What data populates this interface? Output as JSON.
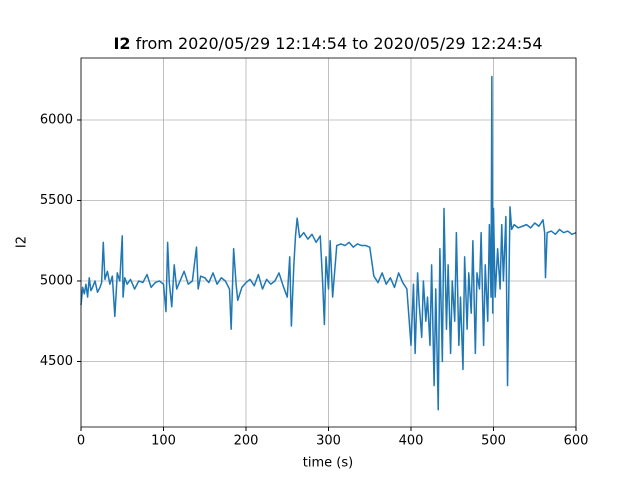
{
  "chart_data": {
    "type": "line",
    "title_parts": [
      "I2",
      "from 2020/05/29 12:14:54 to 2020/05/29 12:24:54"
    ],
    "xlabel": "time (s)",
    "ylabel": "I2",
    "x": [
      0,
      2,
      4,
      6,
      8,
      10,
      12,
      14,
      17,
      20,
      23,
      25,
      27,
      29,
      32,
      35,
      38,
      41,
      44,
      47,
      50,
      51,
      53,
      56,
      60,
      65,
      70,
      75,
      80,
      85,
      90,
      95,
      100,
      103,
      105,
      107,
      110,
      113,
      116,
      120,
      125,
      130,
      135,
      140,
      142,
      145,
      150,
      155,
      160,
      165,
      170,
      175,
      180,
      182,
      185,
      188,
      190,
      195,
      200,
      205,
      210,
      215,
      220,
      225,
      230,
      235,
      240,
      245,
      250,
      253,
      255,
      258,
      260,
      262,
      265,
      270,
      275,
      280,
      285,
      290,
      293,
      295,
      297,
      300,
      302,
      305,
      310,
      315,
      320,
      325,
      330,
      335,
      340,
      345,
      350,
      355,
      360,
      365,
      370,
      375,
      380,
      385,
      390,
      395,
      400,
      403,
      405,
      408,
      410,
      413,
      415,
      418,
      420,
      423,
      425,
      428,
      430,
      433,
      435,
      438,
      440,
      443,
      445,
      448,
      450,
      453,
      455,
      458,
      460,
      463,
      465,
      468,
      470,
      473,
      475,
      478,
      480,
      483,
      485,
      488,
      490,
      493,
      495,
      497,
      498,
      499,
      500,
      502,
      505,
      508,
      510,
      512,
      515,
      517,
      519,
      520,
      522,
      525,
      530,
      535,
      540,
      545,
      550,
      555,
      560,
      562,
      563,
      565,
      570,
      575,
      580,
      585,
      590,
      595,
      600
    ],
    "series": [
      {
        "name": "I2",
        "color": "#1f77b4",
        "values": [
          4850,
          4960,
          4920,
          4980,
          4900,
          5020,
          4940,
          4960,
          5000,
          4930,
          4960,
          4990,
          5240,
          5010,
          5060,
          4980,
          5030,
          4780,
          5050,
          5000,
          5280,
          4900,
          5020,
          4980,
          5010,
          4950,
          5000,
          4990,
          5040,
          4960,
          4990,
          5000,
          4980,
          4810,
          5240,
          4990,
          4840,
          5100,
          4950,
          5000,
          5060,
          4980,
          5000,
          5210,
          4950,
          5030,
          5020,
          4990,
          5050,
          4980,
          5020,
          5000,
          4950,
          4700,
          5200,
          4980,
          4880,
          4960,
          4990,
          5010,
          4970,
          5040,
          4950,
          5010,
          4980,
          5000,
          5050,
          4970,
          4900,
          5150,
          4720,
          5100,
          5280,
          5390,
          5270,
          5300,
          5260,
          5290,
          5240,
          5280,
          4980,
          4730,
          5150,
          4950,
          5250,
          4900,
          5220,
          5230,
          5220,
          5240,
          5210,
          5230,
          5220,
          5220,
          5210,
          5030,
          4990,
          5050,
          4980,
          5020,
          4960,
          5050,
          4990,
          4950,
          4600,
          4980,
          4550,
          5050,
          4850,
          4650,
          5000,
          4750,
          4900,
          4600,
          5100,
          4350,
          4950,
          4200,
          5200,
          4500,
          5450,
          4700,
          5100,
          4550,
          5000,
          4750,
          5300,
          4600,
          4900,
          4450,
          5150,
          4700,
          5050,
          4800,
          5250,
          4550,
          5050,
          4950,
          5300,
          4600,
          5100,
          4750,
          5350,
          4900,
          6270,
          4800,
          5450,
          4900,
          5200,
          4950,
          5350,
          5000,
          5400,
          4350,
          5100,
          5460,
          5320,
          5350,
          5330,
          5340,
          5350,
          5330,
          5360,
          5340,
          5380,
          5300,
          5020,
          5300,
          5310,
          5290,
          5320,
          5300,
          5310,
          5290,
          5300
        ]
      }
    ],
    "xlim": [
      0,
      600
    ],
    "ylim": [
      4093,
      6385
    ],
    "xticks": [
      0,
      100,
      200,
      300,
      400,
      500,
      600
    ],
    "yticks": [
      4500,
      5000,
      5500,
      6000
    ],
    "grid": true
  }
}
